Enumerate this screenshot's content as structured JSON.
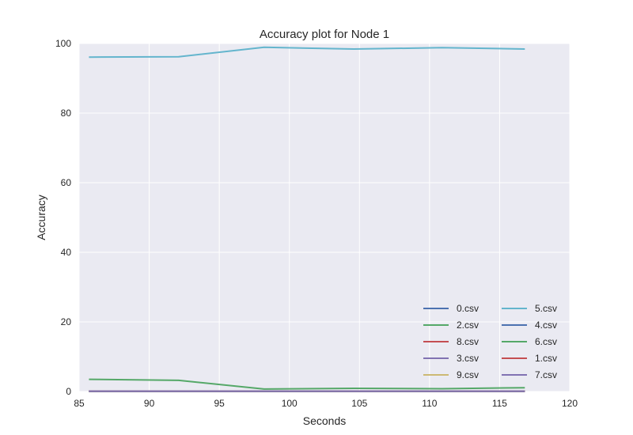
{
  "chart_data": {
    "type": "line",
    "title": "Accuracy plot for Node 1",
    "xlabel": "Seconds",
    "ylabel": "Accuracy",
    "xlim": [
      85,
      120
    ],
    "ylim": [
      0,
      100
    ],
    "xticks": [
      85,
      90,
      95,
      100,
      105,
      110,
      115,
      120
    ],
    "yticks": [
      0,
      20,
      40,
      60,
      80,
      100
    ],
    "grid": true,
    "legend_position": "lower-right",
    "legend_columns": 2,
    "background_color": "#eaeaf2",
    "grid_color": "#ffffff",
    "x": [
      85.7,
      92.1,
      98.2,
      104.6,
      110.9,
      116.8
    ],
    "series": [
      {
        "name": "0.csv",
        "color": "#4c72b0",
        "values": [
          0.1,
          0.1,
          0.1,
          0.1,
          0.1,
          0.1
        ]
      },
      {
        "name": "2.csv",
        "color": "#55a868",
        "values": [
          3.5,
          3.2,
          0.7,
          0.9,
          0.8,
          1.1
        ]
      },
      {
        "name": "8.csv",
        "color": "#c44e52",
        "values": [
          0.1,
          0.1,
          0.1,
          0.1,
          0.1,
          0.1
        ]
      },
      {
        "name": "3.csv",
        "color": "#8172b2",
        "values": [
          0.1,
          0.1,
          0.1,
          0.1,
          0.1,
          0.1
        ]
      },
      {
        "name": "9.csv",
        "color": "#ccb974",
        "values": [
          0.1,
          0.1,
          0.1,
          0.1,
          0.1,
          0.1
        ]
      },
      {
        "name": "5.csv",
        "color": "#64b5cd",
        "values": [
          96.1,
          96.2,
          98.9,
          98.4,
          98.8,
          98.4
        ]
      },
      {
        "name": "4.csv",
        "color": "#4c72b0",
        "values": [
          0.1,
          0.1,
          0.1,
          0.1,
          0.1,
          0.1
        ]
      },
      {
        "name": "6.csv",
        "color": "#55a868",
        "values": [
          0.1,
          0.1,
          0.1,
          0.1,
          0.1,
          0.1
        ]
      },
      {
        "name": "1.csv",
        "color": "#c44e52",
        "values": [
          0.1,
          0.1,
          0.1,
          0.1,
          0.1,
          0.1
        ]
      },
      {
        "name": "7.csv",
        "color": "#8172b2",
        "values": [
          0.1,
          0.1,
          0.1,
          0.1,
          0.1,
          0.1
        ]
      }
    ]
  }
}
